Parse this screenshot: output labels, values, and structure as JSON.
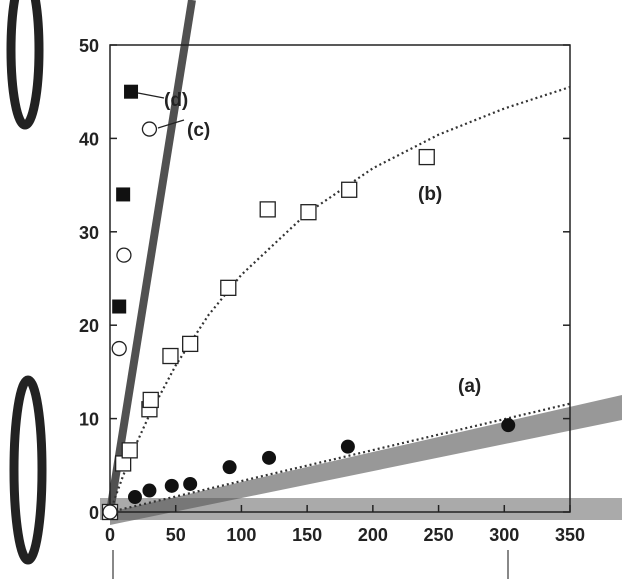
{
  "chart_data": {
    "type": "scatter",
    "title": "",
    "xlabel": "",
    "ylabel": "",
    "xlim": [
      0,
      350
    ],
    "ylim": [
      0,
      50
    ],
    "grid": false,
    "x_ticks": [
      "0",
      "50",
      "100",
      "150",
      "200",
      "250",
      "300",
      "350"
    ],
    "y_ticks": [
      "0",
      "10",
      "20",
      "30",
      "40",
      "50"
    ],
    "series": [
      {
        "name": "(a)",
        "marker": "filled-circle",
        "x": [
          0,
          19,
          30,
          47,
          61,
          91,
          121,
          181,
          303
        ],
        "y": [
          0,
          1.6,
          2.3,
          2.8,
          3.0,
          4.8,
          5.8,
          7.0,
          9.3
        ],
        "fit": {
          "x": [
            0,
            350
          ],
          "y": [
            0,
            11.6
          ]
        }
      },
      {
        "name": "(b)",
        "marker": "open-square",
        "x": [
          0,
          10,
          15,
          30,
          31,
          46,
          61,
          90,
          120,
          151,
          182,
          241
        ],
        "y": [
          0,
          5.2,
          6.6,
          11.0,
          12.0,
          16.7,
          18.0,
          24.0,
          32.4,
          32.1,
          34.5,
          38.0
        ],
        "fit": {
          "x": [
            0,
            10,
            20,
            30,
            50,
            75,
            100,
            150,
            200,
            250,
            300,
            350
          ],
          "y": [
            0,
            3.9,
            7.3,
            10.4,
            15.7,
            21.1,
            25.4,
            32.0,
            36.8,
            40.4,
            43.2,
            45.5
          ]
        }
      },
      {
        "name": "(c)",
        "marker": "open-circle",
        "x": [
          0,
          7,
          10.6,
          30
        ],
        "y": [
          0,
          17.5,
          27.5,
          41.0
        ]
      },
      {
        "name": "(d)",
        "marker": "filled-square",
        "x": [
          7,
          10,
          16
        ],
        "y": [
          22,
          34,
          45
        ]
      }
    ]
  }
}
